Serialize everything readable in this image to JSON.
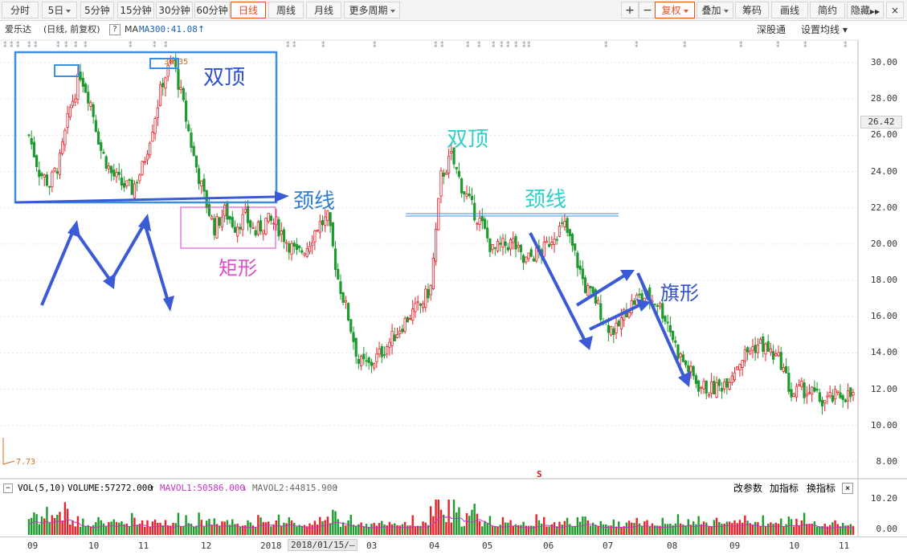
{
  "toolbar": {
    "periods": [
      "分时",
      "5日",
      "5分钟",
      "15分钟",
      "30分钟",
      "60分钟",
      "日线",
      "周线",
      "月线",
      "更多周期"
    ],
    "active_period": "日线",
    "right_buttons": [
      "+",
      "−",
      "复权",
      "叠加",
      "筹码",
      "画线",
      "简约",
      "隐藏"
    ],
    "close_icon": "×"
  },
  "info": {
    "stock_name": "爱乐达",
    "mode": "(日线, 前复权)",
    "help": "?",
    "ma_label": "MA",
    "ma300": "MA300:41.08",
    "ma300_arrow": "↑",
    "exchange": "深股通",
    "settings": "设置均线"
  },
  "price_axis": {
    "labels": [
      "30.00",
      "28.00",
      "26.00",
      "24.00",
      "22.00",
      "20.00",
      "18.00",
      "16.00",
      "14.00",
      "12.00",
      "10.00",
      "8.00"
    ],
    "current_price": "26.42"
  },
  "chart_marks": {
    "high_label": "30.35",
    "low_label": "7.73",
    "s_marker": "S"
  },
  "annotations": {
    "double_top_1": "双顶",
    "neckline_1": "颈线",
    "rectangle": "矩形",
    "double_top_2": "双顶",
    "neckline_2": "颈线",
    "flag": "旗形"
  },
  "volume": {
    "title": "VOL(5,10)",
    "volume": "VOLUME:57272.000",
    "volume_arrow": "↑",
    "mavol1": "MAVOL1:50586.000",
    "mavol1_arrow": "↓",
    "mavol2": "MAVOL2:44815.900",
    "mavol2_arrow": "↑",
    "tools": [
      "改参数",
      "加指标",
      "换指标"
    ],
    "close_icon": "×",
    "axis_labels": [
      "10.20",
      "0.00"
    ]
  },
  "x_axis": {
    "labels": [
      "09",
      "10",
      "11",
      "12",
      "2018",
      "2018/01/15/—",
      "03",
      "04",
      "05",
      "06",
      "07",
      "08",
      "09",
      "10",
      "11"
    ]
  },
  "colors": {
    "up": "#e8222a",
    "down": "#1e9a2e",
    "accent": "#e8501a",
    "arrow": "#3b5bd6",
    "box_blue": "#3c8ee0",
    "rect_magenta": "#d640c6",
    "teal_text": "#2fd0c8"
  },
  "chart_data": {
    "type": "candlestick",
    "price_range": [
      7.73,
      30.35
    ],
    "series": [
      {
        "values": [
          26.0,
          24.0,
          23.3,
          24.6,
          27.5,
          29.4,
          27.8,
          25.2,
          23.9,
          23.3,
          23.0,
          24.2,
          26.5,
          29.0,
          30.2,
          27.6,
          24.8,
          22.6,
          20.9,
          21.8,
          21.0,
          21.5,
          20.6,
          21.3,
          21.1,
          20.2,
          19.4,
          19.9,
          21.0,
          21.4,
          18.1,
          16.0,
          13.5,
          13.3,
          13.9,
          14.6,
          15.4,
          16.1,
          16.6,
          17.6,
          23.7,
          24.8,
          23.2,
          22.0,
          21.0,
          19.6,
          19.9,
          20.1,
          19.0,
          19.4,
          19.7,
          20.6,
          21.0,
          19.4,
          17.6,
          16.9,
          15.6,
          15.2,
          16.4,
          17.0,
          17.1,
          16.8,
          15.7,
          14.0,
          13.1,
          12.2,
          12.0,
          12.1,
          12.7,
          13.6,
          14.2,
          14.5,
          14.0,
          13.5,
          11.7,
          12.0,
          11.8,
          11.3,
          11.5,
          11.7,
          11.6
        ]
      }
    ]
  }
}
